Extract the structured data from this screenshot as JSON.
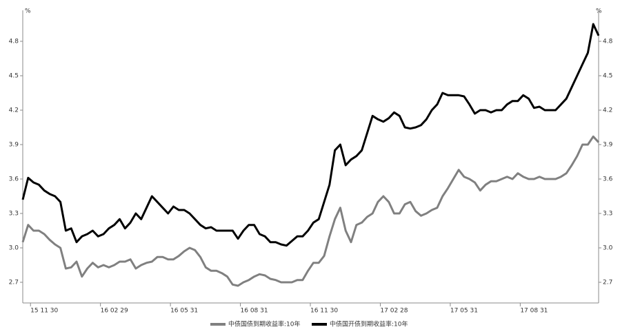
{
  "chart_data": {
    "type": "line",
    "y_unit": "%",
    "categories": [
      null,
      null,
      null,
      null,
      "15 11 30",
      null,
      null,
      null,
      null,
      null,
      null,
      null,
      null,
      null,
      null,
      null,
      null,
      "16 02 29",
      null,
      null,
      null,
      null,
      null,
      null,
      null,
      null,
      null,
      null,
      null,
      null,
      "16 05 31",
      null,
      null,
      null,
      null,
      null,
      null,
      null,
      null,
      null,
      null,
      null,
      null,
      "16 08 31",
      null,
      null,
      null,
      null,
      null,
      null,
      null,
      null,
      null,
      null,
      null,
      null,
      "16 11 30",
      null,
      null,
      null,
      null,
      null,
      null,
      null,
      null,
      null,
      null,
      null,
      null,
      "17 02 28",
      null,
      null,
      null,
      null,
      null,
      null,
      null,
      null,
      null,
      null,
      null,
      null,
      "17 05 31",
      null,
      null,
      null,
      null,
      null,
      null,
      null,
      null,
      null,
      null,
      null,
      null,
      "17 08 31",
      null,
      null,
      null,
      null,
      null,
      null,
      null,
      null,
      null,
      null,
      null,
      null
    ],
    "series": [
      {
        "name": "中债国债到期收益率:10年",
        "color": "#808080",
        "values": [
          3.05,
          3.2,
          3.15,
          3.15,
          3.12,
          3.07,
          3.03,
          3.0,
          2.82,
          2.83,
          2.88,
          2.75,
          2.82,
          2.87,
          2.83,
          2.85,
          2.83,
          2.85,
          2.88,
          2.88,
          2.9,
          2.82,
          2.85,
          2.87,
          2.88,
          2.92,
          2.92,
          2.9,
          2.9,
          2.93,
          2.97,
          3.0,
          2.98,
          2.92,
          2.83,
          2.8,
          2.8,
          2.78,
          2.75,
          2.68,
          2.67,
          2.7,
          2.72,
          2.75,
          2.77,
          2.76,
          2.73,
          2.72,
          2.7,
          2.7,
          2.7,
          2.72,
          2.72,
          2.8,
          2.87,
          2.87,
          2.93,
          3.1,
          3.25,
          3.35,
          3.15,
          3.05,
          3.2,
          3.22,
          3.27,
          3.3,
          3.4,
          3.45,
          3.4,
          3.3,
          3.3,
          3.38,
          3.4,
          3.32,
          3.28,
          3.3,
          3.33,
          3.35,
          3.45,
          3.52,
          3.6,
          3.68,
          3.62,
          3.6,
          3.57,
          3.5,
          3.55,
          3.58,
          3.58,
          3.6,
          3.62,
          3.6,
          3.65,
          3.62,
          3.6,
          3.6,
          3.62,
          3.6,
          3.6,
          3.6,
          3.62,
          3.65,
          3.72,
          3.8,
          3.9,
          3.9,
          3.97,
          3.92
        ]
      },
      {
        "name": "中债国开债到期收益率:10年",
        "color": "#000000",
        "values": [
          3.42,
          3.61,
          3.57,
          3.55,
          3.5,
          3.47,
          3.45,
          3.4,
          3.15,
          3.17,
          3.05,
          3.1,
          3.12,
          3.15,
          3.1,
          3.12,
          3.17,
          3.2,
          3.25,
          3.17,
          3.22,
          3.3,
          3.25,
          3.35,
          3.45,
          3.4,
          3.35,
          3.3,
          3.36,
          3.33,
          3.33,
          3.3,
          3.25,
          3.2,
          3.17,
          3.18,
          3.15,
          3.15,
          3.15,
          3.15,
          3.08,
          3.15,
          3.2,
          3.2,
          3.12,
          3.1,
          3.05,
          3.05,
          3.03,
          3.02,
          3.06,
          3.1,
          3.1,
          3.15,
          3.22,
          3.25,
          3.4,
          3.55,
          3.85,
          3.9,
          3.72,
          3.77,
          3.8,
          3.85,
          4.0,
          4.15,
          4.12,
          4.1,
          4.13,
          4.18,
          4.15,
          4.05,
          4.04,
          4.05,
          4.07,
          4.12,
          4.2,
          4.25,
          4.35,
          4.33,
          4.33,
          4.33,
          4.32,
          4.25,
          4.17,
          4.2,
          4.2,
          4.18,
          4.2,
          4.2,
          4.25,
          4.28,
          4.28,
          4.33,
          4.3,
          4.22,
          4.23,
          4.2,
          4.2,
          4.2,
          4.25,
          4.3,
          4.4,
          4.5,
          4.6,
          4.7,
          4.95,
          4.85
        ]
      }
    ],
    "ylim": [
      2.52,
      5.07
    ],
    "yticks": [
      2.7,
      {
        "value": 3,
        "label": "3.0"
      },
      3.3,
      3.6,
      3.9,
      4.2,
      4.5,
      4.8
    ],
    "y2lim": [
      2.52,
      5.07
    ],
    "y2ticks": [
      2.7,
      {
        "value": 3,
        "label": "3.0"
      },
      3.3,
      3.6,
      3.9,
      4.2,
      4.5,
      4.8
    ]
  }
}
